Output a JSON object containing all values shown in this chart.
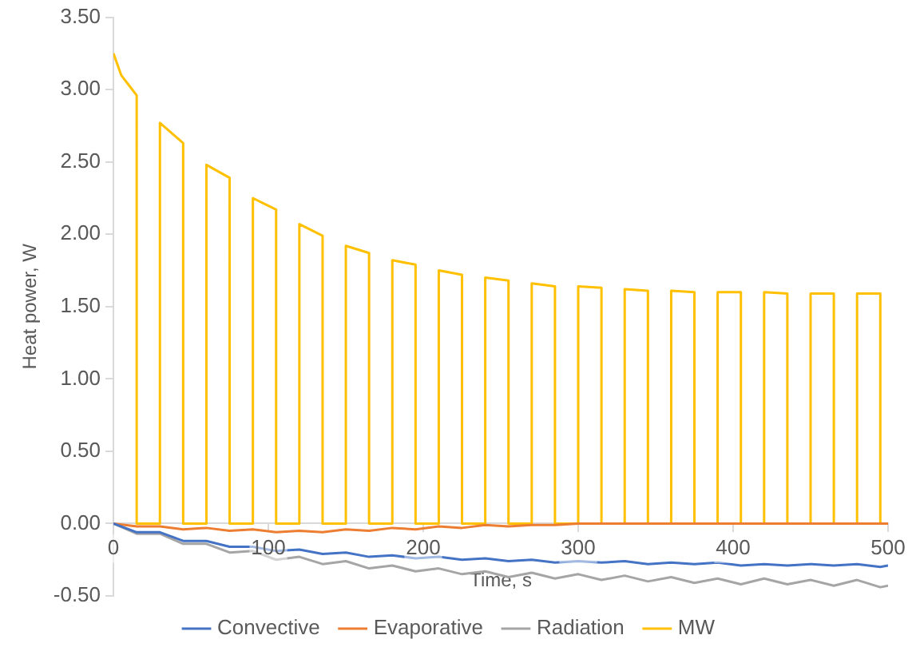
{
  "chart_data": {
    "type": "line",
    "xlabel": "Time, s",
    "ylabel": "Heat power, W",
    "xlim": [
      0,
      500
    ],
    "xticks": [
      0,
      100,
      200,
      300,
      400,
      500
    ],
    "ylim": [
      -0.5,
      3.5
    ],
    "yticks": [
      {
        "value": -0.5,
        "label": "-0.50"
      },
      {
        "value": 0,
        "label": "0.00"
      },
      {
        "value": 0.5,
        "label": "0.50"
      },
      {
        "value": 1,
        "label": "1.00"
      },
      {
        "value": 1.5,
        "label": "1.50"
      },
      {
        "value": 2,
        "label": "2.00"
      },
      {
        "value": 2.5,
        "label": "2.50"
      },
      {
        "value": 3,
        "label": "3.00"
      },
      {
        "value": 3.5,
        "label": "3.50"
      }
    ],
    "grid": false,
    "legend": "bottom",
    "marker": "none",
    "line_style": "solid",
    "series": [
      {
        "name": "Convective",
        "color": "#4472c4",
        "x": [
          0,
          15,
          30,
          45,
          60,
          75,
          90,
          105,
          120,
          135,
          150,
          165,
          180,
          195,
          210,
          225,
          240,
          255,
          270,
          285,
          300,
          315,
          330,
          345,
          360,
          375,
          390,
          405,
          420,
          435,
          450,
          465,
          480,
          495,
          500
        ],
        "values": [
          0,
          -0.06,
          -0.06,
          -0.12,
          -0.12,
          -0.16,
          -0.16,
          -0.19,
          -0.18,
          -0.21,
          -0.2,
          -0.23,
          -0.22,
          -0.24,
          -0.23,
          -0.25,
          -0.24,
          -0.26,
          -0.25,
          -0.27,
          -0.26,
          -0.27,
          -0.26,
          -0.28,
          -0.27,
          -0.28,
          -0.27,
          -0.29,
          -0.28,
          -0.29,
          -0.28,
          -0.29,
          -0.28,
          -0.3,
          -0.29
        ]
      },
      {
        "name": "Evaporative",
        "color": "#ed7d31",
        "x": [
          0,
          15,
          30,
          45,
          60,
          75,
          90,
          105,
          120,
          135,
          150,
          165,
          180,
          195,
          210,
          225,
          240,
          255,
          270,
          285,
          300,
          500
        ],
        "values": [
          0,
          -0.02,
          -0.02,
          -0.04,
          -0.03,
          -0.05,
          -0.04,
          -0.06,
          -0.05,
          -0.06,
          -0.04,
          -0.05,
          -0.03,
          -0.04,
          -0.02,
          -0.03,
          -0.01,
          -0.02,
          -0.01,
          -0.01,
          0,
          0
        ]
      },
      {
        "name": "Radiation",
        "color": "#a5a5a5",
        "x": [
          0,
          15,
          30,
          45,
          60,
          75,
          90,
          105,
          120,
          135,
          150,
          165,
          180,
          195,
          210,
          225,
          240,
          255,
          270,
          285,
          300,
          315,
          330,
          345,
          360,
          375,
          390,
          405,
          420,
          435,
          450,
          465,
          480,
          495,
          500
        ],
        "values": [
          0,
          -0.07,
          -0.07,
          -0.14,
          -0.14,
          -0.2,
          -0.19,
          -0.25,
          -0.23,
          -0.28,
          -0.26,
          -0.31,
          -0.29,
          -0.33,
          -0.31,
          -0.35,
          -0.33,
          -0.37,
          -0.34,
          -0.38,
          -0.35,
          -0.39,
          -0.36,
          -0.4,
          -0.37,
          -0.41,
          -0.38,
          -0.42,
          -0.38,
          -0.42,
          -0.39,
          -0.43,
          -0.39,
          -0.44,
          -0.43
        ]
      },
      {
        "name": "MW",
        "color": "#ffc000",
        "x": [
          0,
          5,
          10,
          15,
          15,
          30,
          30,
          45,
          45,
          60,
          60,
          75,
          75,
          90,
          90,
          105,
          105,
          120,
          120,
          135,
          135,
          150,
          150,
          165,
          165,
          180,
          180,
          195,
          195,
          210,
          210,
          225,
          225,
          240,
          240,
          255,
          255,
          270,
          270,
          285,
          285,
          300,
          300,
          315,
          315,
          330,
          330,
          345,
          345,
          360,
          360,
          375,
          375,
          390,
          390,
          405,
          405,
          420,
          420,
          435,
          435,
          450,
          450,
          465,
          465,
          480,
          480,
          495,
          495,
          500
        ],
        "values": [
          3.25,
          3.1,
          3.03,
          2.96,
          0,
          0,
          2.77,
          2.63,
          0,
          0,
          2.48,
          2.39,
          0,
          0,
          2.25,
          2.17,
          0,
          0,
          2.07,
          1.99,
          0,
          0,
          1.92,
          1.87,
          0,
          0,
          1.82,
          1.79,
          0,
          0,
          1.75,
          1.72,
          0,
          0,
          1.7,
          1.68,
          0,
          0,
          1.66,
          1.64,
          0,
          0,
          1.64,
          1.63,
          0,
          0,
          1.62,
          1.61,
          0,
          0,
          1.61,
          1.6,
          0,
          0,
          1.6,
          1.6,
          0,
          0,
          1.6,
          1.59,
          0,
          0,
          1.59,
          1.59,
          0,
          0,
          1.59,
          1.59,
          0,
          0
        ]
      }
    ]
  }
}
